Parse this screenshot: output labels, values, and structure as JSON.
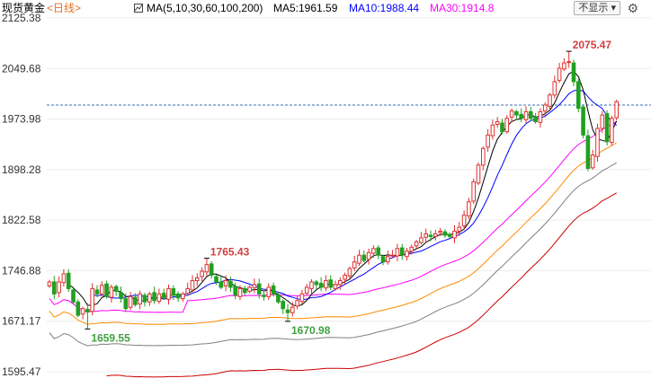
{
  "legend": {
    "name": "现货黄金",
    "period": "<日线>",
    "ma_group": "MA(5,10,30,60,100,200)",
    "ma5": "MA5:1961.59",
    "ma10": "MA10:1988.44",
    "ma30": "MA30:1914.8",
    "hide_label": "不显示",
    "dropdown_arrow": "▾",
    "colors": {
      "ma5": "#000000",
      "ma10": "#0000ff",
      "ma30": "#ff00ff",
      "ma60": "#ff8c00",
      "ma100": "#808080",
      "ma200": "#cc0000",
      "up": "#e03030",
      "down": "#20a020"
    }
  },
  "icons": {
    "indicator": "indicator-icon",
    "gear": "gear-icon"
  },
  "chart_data": {
    "type": "candlestick",
    "y_ticks": [
      "2125.38",
      "2049.68",
      "1973.98",
      "1898.28",
      "1822.58",
      "1746.88",
      "1671.17",
      "1595.47"
    ],
    "ylim": [
      1595.47,
      2125.38
    ],
    "reference_price": 1995,
    "annotations": [
      {
        "label": "2075.47",
        "value": 2075.47,
        "bar": 109,
        "type": "high"
      },
      {
        "label": "1765.43",
        "value": 1765.43,
        "bar": 33,
        "type": "high"
      },
      {
        "label": "1659.55",
        "value": 1659.55,
        "bar": 8,
        "type": "low"
      },
      {
        "label": "1670.98",
        "value": 1670.98,
        "bar": 50,
        "type": "low"
      }
    ],
    "closes": [
      1730,
      1712,
      1730,
      1742,
      1720,
      1700,
      1680,
      1690,
      1685,
      1720,
      1712,
      1725,
      1708,
      1722,
      1716,
      1705,
      1690,
      1708,
      1696,
      1712,
      1700,
      1712,
      1702,
      1712,
      1706,
      1720,
      1710,
      1706,
      1712,
      1720,
      1732,
      1736,
      1746,
      1756,
      1740,
      1730,
      1722,
      1732,
      1722,
      1710,
      1720,
      1714,
      1722,
      1726,
      1712,
      1708,
      1722,
      1712,
      1700,
      1690,
      1684,
      1692,
      1702,
      1712,
      1722,
      1730,
      1726,
      1722,
      1732,
      1722,
      1726,
      1732,
      1740,
      1750,
      1760,
      1770,
      1762,
      1774,
      1780,
      1770,
      1760,
      1768,
      1770,
      1780,
      1770,
      1776,
      1782,
      1790,
      1796,
      1802,
      1798,
      1802,
      1806,
      1800,
      1798,
      1806,
      1812,
      1830,
      1850,
      1880,
      1905,
      1930,
      1950,
      1965,
      1970,
      1955,
      1975,
      1986,
      1980,
      1975,
      1985,
      1975,
      1970,
      1985,
      1995,
      2010,
      2030,
      2050,
      2058,
      2060,
      2030,
      1990,
      1950,
      1900,
      1920,
      1960,
      1980,
      1940,
      1975,
      2000
    ]
  }
}
